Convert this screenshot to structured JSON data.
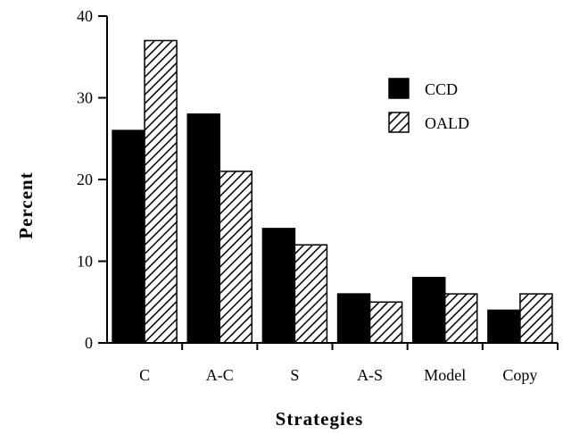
{
  "chart_data": {
    "type": "bar",
    "categories": [
      "C",
      "A-C",
      "S",
      "A-S",
      "Model",
      "Copy"
    ],
    "series": [
      {
        "name": "CCD",
        "values": [
          26,
          28,
          14,
          6,
          8,
          4
        ],
        "fill": "#000000",
        "pattern": "solid"
      },
      {
        "name": "OALD",
        "values": [
          37,
          21,
          12,
          5,
          6,
          6
        ],
        "fill": "#ffffff",
        "pattern": "diagonal-hatch"
      }
    ],
    "title": "",
    "xlabel": "Strategies",
    "ylabel": "Percent",
    "ylim": [
      0,
      40
    ],
    "yticks": [
      0,
      10,
      20,
      30,
      40
    ],
    "grid": false,
    "legend_position": "top-right"
  }
}
